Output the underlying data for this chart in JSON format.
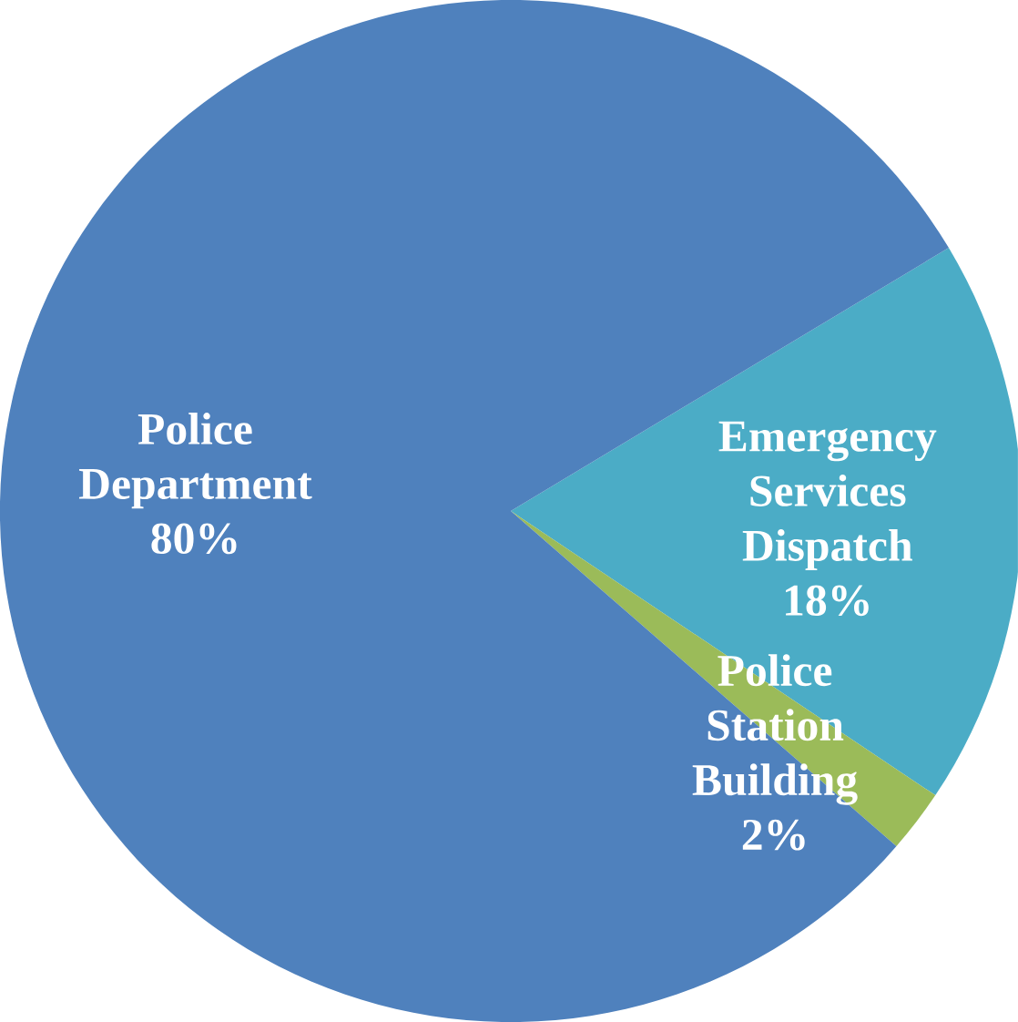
{
  "chart_data": {
    "type": "pie",
    "categories": [
      "Emergency Services Dispatch",
      "Police Station Building",
      "Police Department"
    ],
    "values": [
      18,
      2,
      80
    ],
    "value_labels": [
      "18%",
      "2%",
      "80%"
    ],
    "colors": [
      "#4bacc6",
      "#9bbb59",
      "#4f81bd"
    ]
  }
}
